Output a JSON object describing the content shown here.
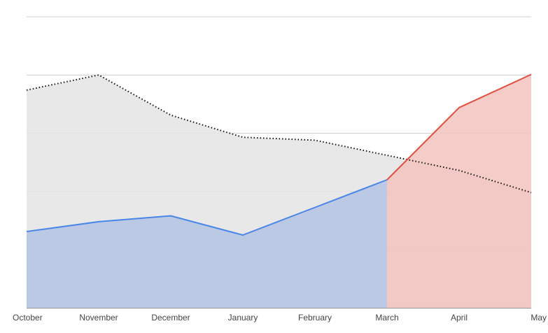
{
  "chart_data": {
    "type": "area",
    "title": "",
    "xlabel": "",
    "ylabel": "",
    "categories": [
      "October",
      "November",
      "December",
      "January",
      "February",
      "March",
      "April",
      "May"
    ],
    "ylim": [
      0,
      500
    ],
    "y_gridlines": [
      0,
      100,
      200,
      300,
      400,
      500
    ],
    "grid": true,
    "legend": "none",
    "series": [
      {
        "style": "dotted-line-with-gray-fill",
        "color": "#111111",
        "fill": "#e4e4e4",
        "values": [
          374,
          400,
          331,
          293,
          288,
          262,
          236,
          198
        ]
      },
      {
        "style": "solid-line-with-fill",
        "color": "#4a86e8",
        "fill": "#b3c3e3",
        "values": [
          131,
          148,
          158,
          125,
          null,
          220,
          null,
          null
        ]
      },
      {
        "style": "solid-line-with-fill",
        "color": "#e05040",
        "fill": "#f4c3bf",
        "values": [
          null,
          null,
          null,
          null,
          null,
          220,
          344,
          401
        ]
      }
    ]
  }
}
